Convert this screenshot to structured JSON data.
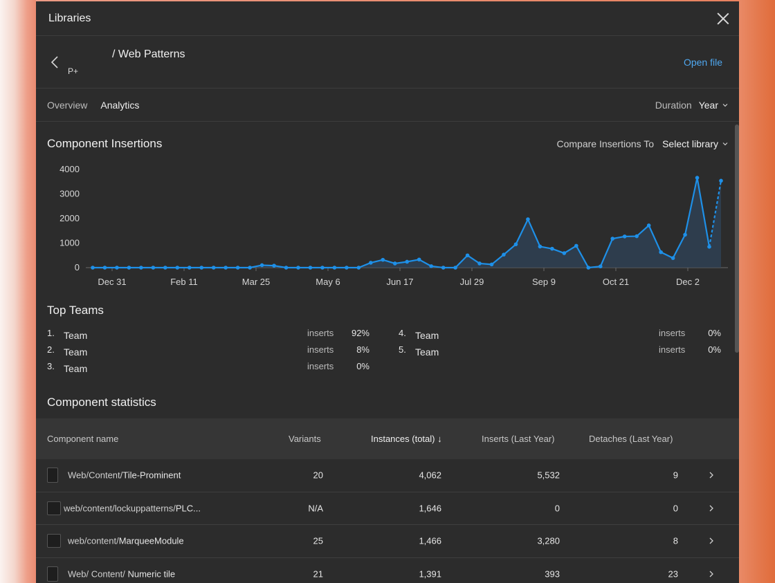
{
  "modal": {
    "title": "Libraries",
    "library_logo": "P+",
    "library_name": "/ Web Patterns",
    "open_file": "Open file"
  },
  "tabs": [
    {
      "label": "Overview",
      "active": false
    },
    {
      "label": "Analytics",
      "active": true
    }
  ],
  "duration": {
    "label": "Duration",
    "value": "Year"
  },
  "insertions": {
    "title": "Component Insertions",
    "compare_label": "Compare Insertions To",
    "compare_value": "Select library"
  },
  "chart_data": {
    "type": "line",
    "title": "Component Insertions",
    "ylim": [
      0,
      4000
    ],
    "yticks": [
      "4000",
      "3000",
      "2000",
      "1000",
      "0"
    ],
    "xticks": [
      "Dec 31",
      "Feb 11",
      "Mar 25",
      "May 6",
      "Jun 17",
      "Jul 29",
      "Sep 9",
      "Oct 21",
      "Dec 2"
    ],
    "series": [
      {
        "name": "Insertions",
        "color": "#1e90e8",
        "values": [
          0,
          0,
          0,
          0,
          0,
          0,
          0,
          0,
          0,
          0,
          0,
          0,
          0,
          0,
          100,
          80,
          0,
          0,
          0,
          0,
          0,
          0,
          0,
          200,
          320,
          170,
          240,
          330,
          60,
          0,
          0,
          500,
          170,
          130,
          530,
          950,
          1970,
          860,
          770,
          590,
          890,
          0,
          50,
          1180,
          1270,
          1280,
          1720,
          630,
          390,
          1340,
          3660,
          850
        ],
        "projected": [
          850,
          3540
        ]
      }
    ]
  },
  "top_teams": {
    "title": "Top Teams",
    "inserts_label": "inserts",
    "items": [
      {
        "rank": "1.",
        "name": "Team",
        "pct": "92%"
      },
      {
        "rank": "2.",
        "name": "Team",
        "pct": "8%"
      },
      {
        "rank": "3.",
        "name": "Team",
        "pct": "0%"
      },
      {
        "rank": "4.",
        "name": "Team",
        "pct": "0%"
      },
      {
        "rank": "5.",
        "name": "Team",
        "pct": "0%"
      }
    ]
  },
  "stats": {
    "title": "Component statistics",
    "columns": [
      "Component name",
      "Variants",
      "Instances (total) ↓",
      "Inserts (Last Year)",
      "Detaches (Last Year)"
    ],
    "rows": [
      {
        "prefix": "Web/Content/",
        "name": "Tile-Prominent",
        "variants": "20",
        "instances": "4,062",
        "inserts": "5,532",
        "detaches": "9"
      },
      {
        "prefix": "web/content/lockuppatterns/",
        "name": "PLC...",
        "variants": "N/A",
        "instances": "1,646",
        "inserts": "0",
        "detaches": "0"
      },
      {
        "prefix": "web/content/",
        "name": "MarqueeModule",
        "variants": "25",
        "instances": "1,466",
        "inserts": "3,280",
        "detaches": "8"
      },
      {
        "prefix": "Web/ Content/ ",
        "name": "Numeric tile",
        "variants": "21",
        "instances": "1,391",
        "inserts": "393",
        "detaches": "23"
      }
    ]
  }
}
